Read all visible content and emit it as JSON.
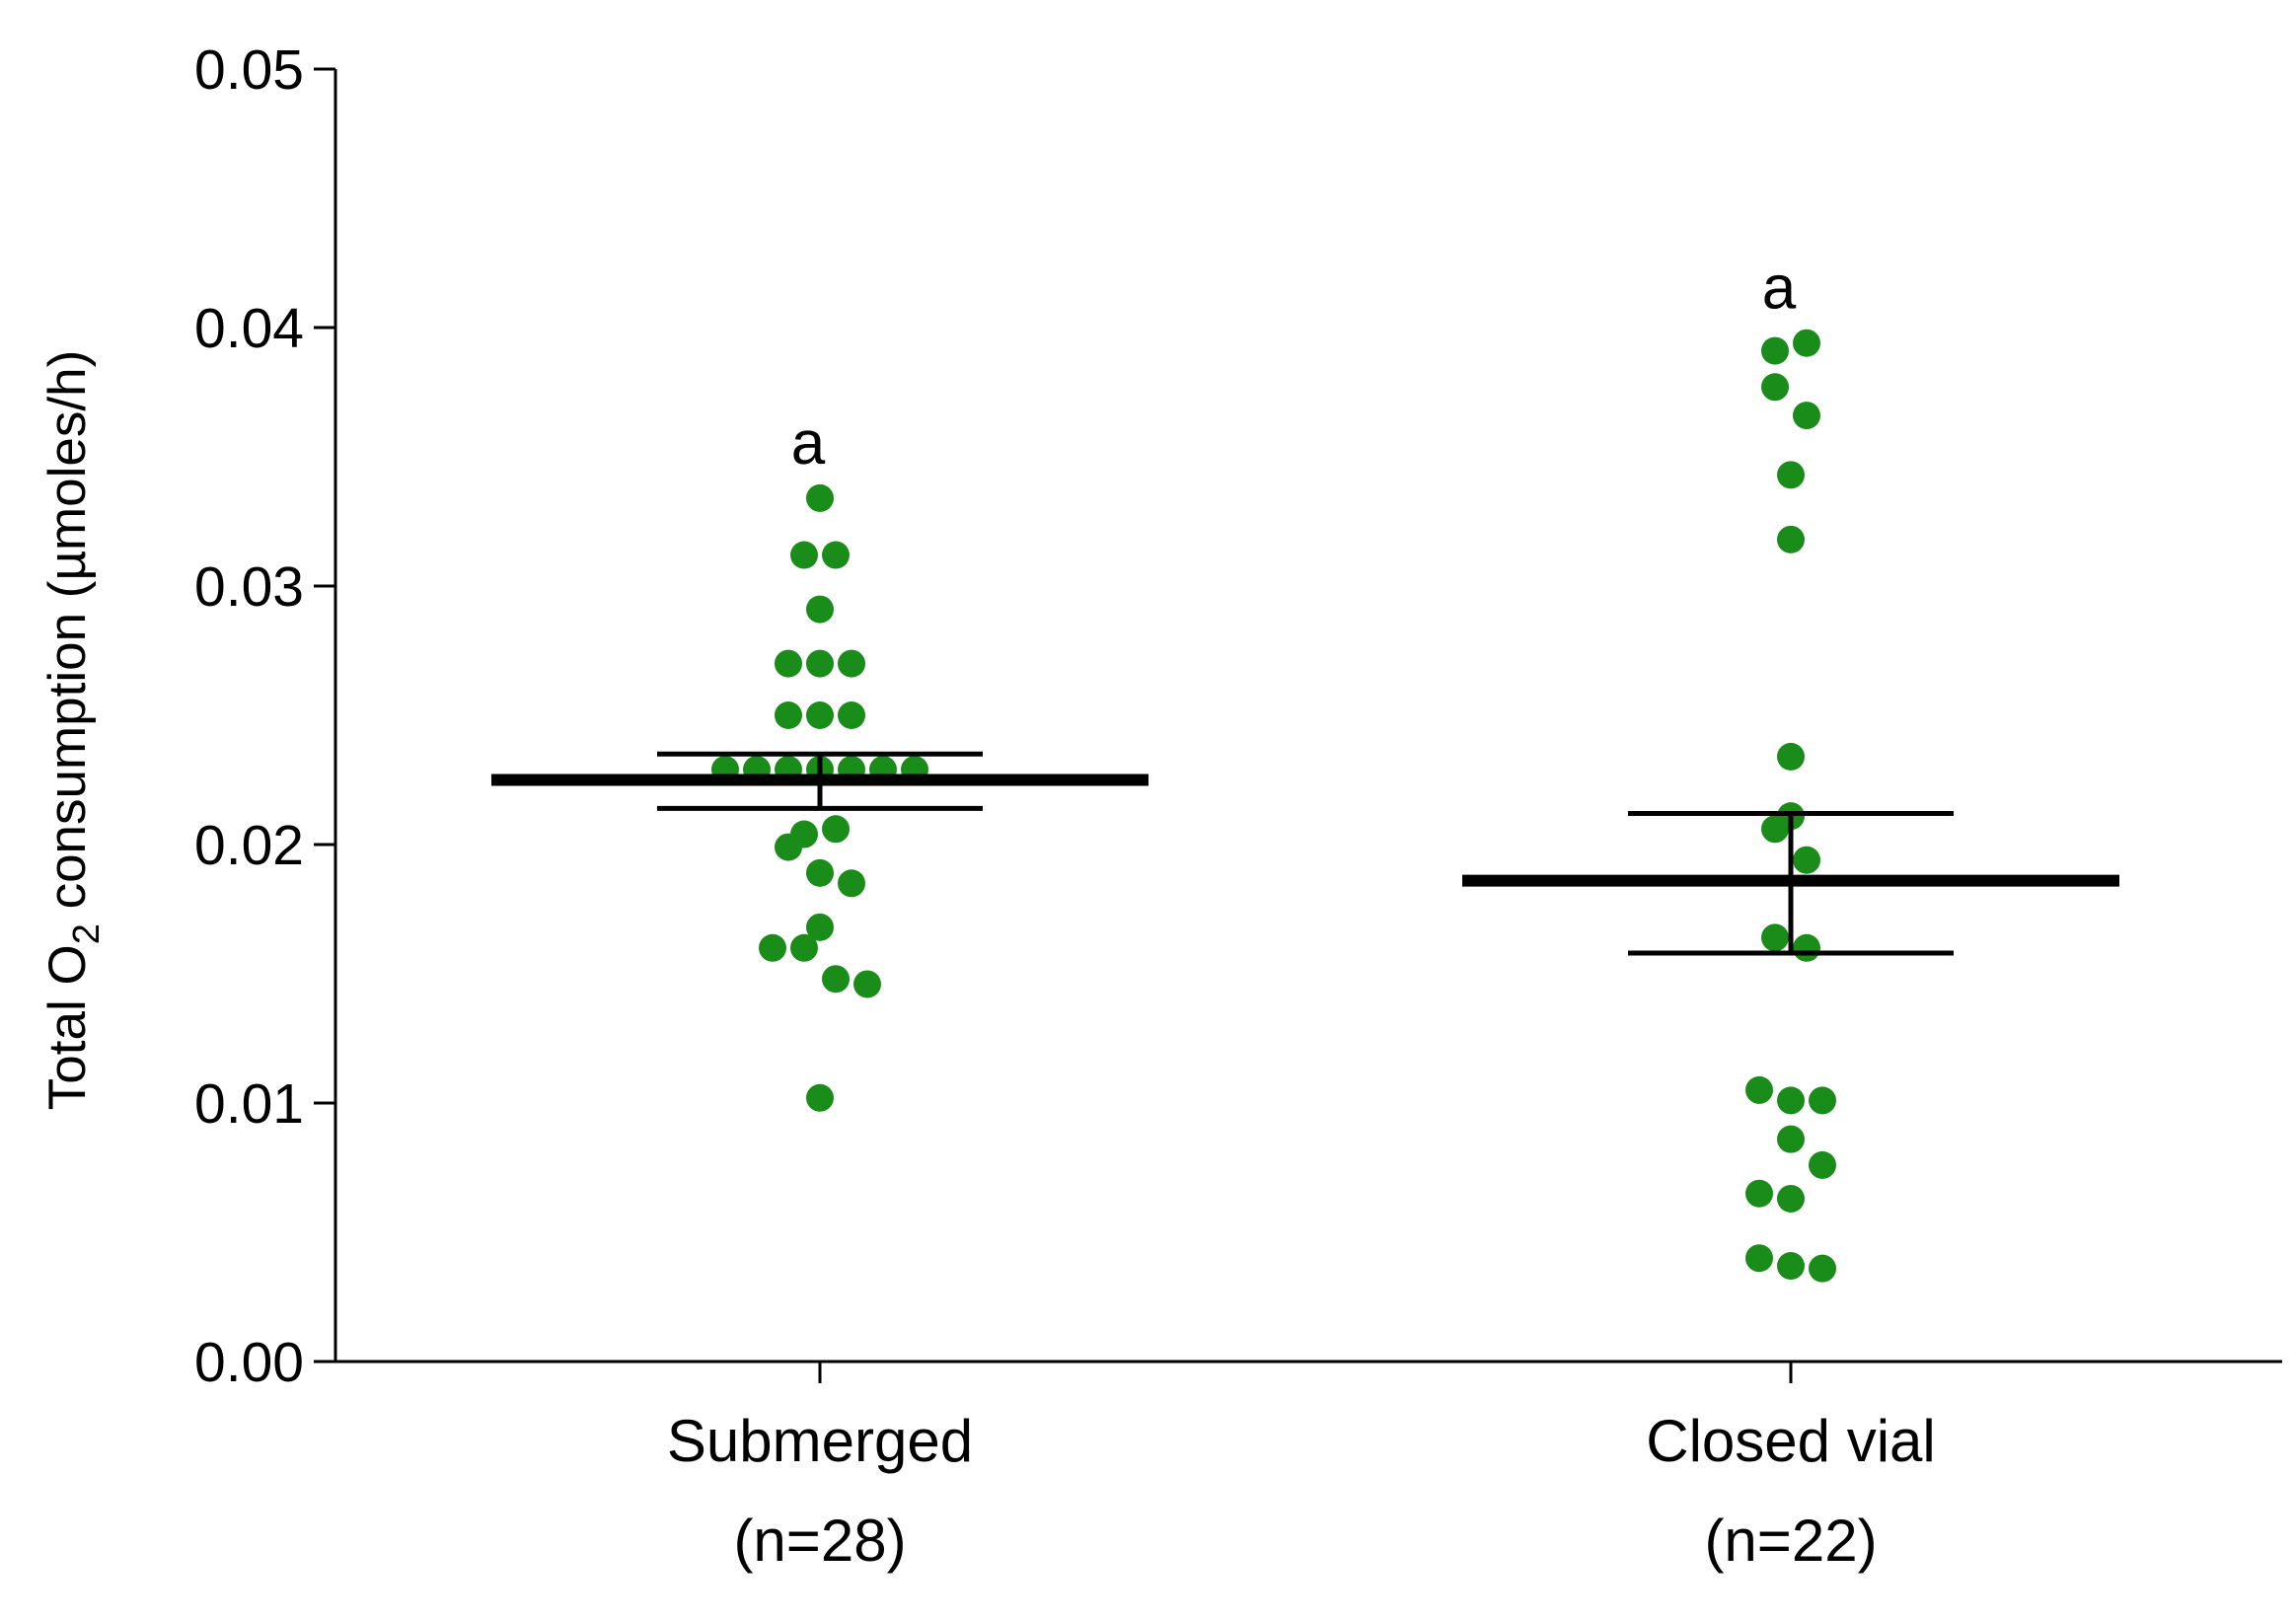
{
  "chart_data": {
    "type": "scatter",
    "title": "",
    "xlabel": "",
    "ylabel": {
      "prefix": "Total O",
      "subscript": "2",
      "suffix": " consumption  (µmoles/h)"
    },
    "ylim": [
      0,
      0.05
    ],
    "yticks": [
      "0.00",
      "0.01",
      "0.02",
      "0.03",
      "0.04",
      "0.05"
    ],
    "point_color": "#1a8c1a",
    "groups": [
      {
        "name": "Submerged",
        "n_label": "(n=28)",
        "annotation": "a",
        "mean": 0.0225,
        "sem_upper": 0.0235,
        "sem_lower": 0.0214,
        "points": [
          {
            "y": 0.0334,
            "offset": 0
          },
          {
            "y": 0.0312,
            "offset": -0.5
          },
          {
            "y": 0.0312,
            "offset": 0.5
          },
          {
            "y": 0.0291,
            "offset": 0
          },
          {
            "y": 0.027,
            "offset": -1
          },
          {
            "y": 0.027,
            "offset": 0
          },
          {
            "y": 0.027,
            "offset": 1
          },
          {
            "y": 0.025,
            "offset": -1
          },
          {
            "y": 0.025,
            "offset": 0
          },
          {
            "y": 0.025,
            "offset": 1
          },
          {
            "y": 0.0229,
            "offset": -3
          },
          {
            "y": 0.0229,
            "offset": -2
          },
          {
            "y": 0.0229,
            "offset": -1
          },
          {
            "y": 0.0229,
            "offset": 0
          },
          {
            "y": 0.0229,
            "offset": 1
          },
          {
            "y": 0.0229,
            "offset": 2
          },
          {
            "y": 0.0229,
            "offset": 3
          },
          {
            "y": 0.0204,
            "offset": -0.5
          },
          {
            "y": 0.0206,
            "offset": 0.5
          },
          {
            "y": 0.0199,
            "offset": -1
          },
          {
            "y": 0.0189,
            "offset": 0
          },
          {
            "y": 0.0185,
            "offset": 1
          },
          {
            "y": 0.0168,
            "offset": 0
          },
          {
            "y": 0.016,
            "offset": -1.5
          },
          {
            "y": 0.016,
            "offset": -0.5
          },
          {
            "y": 0.0148,
            "offset": 0.5
          },
          {
            "y": 0.0146,
            "offset": 1.5
          },
          {
            "y": 0.0102,
            "offset": 0
          }
        ]
      },
      {
        "name": "Closed vial",
        "n_label": "(n=22)",
        "annotation": "a",
        "mean": 0.0186,
        "sem_upper": 0.0212,
        "sem_lower": 0.0158,
        "points": [
          {
            "y": 0.0394,
            "offset": 0.5
          },
          {
            "y": 0.0391,
            "offset": -0.5
          },
          {
            "y": 0.0377,
            "offset": -0.5
          },
          {
            "y": 0.0366,
            "offset": 0.5
          },
          {
            "y": 0.0343,
            "offset": 0
          },
          {
            "y": 0.0318,
            "offset": 0
          },
          {
            "y": 0.0234,
            "offset": 0
          },
          {
            "y": 0.0211,
            "offset": 0
          },
          {
            "y": 0.0206,
            "offset": -0.5
          },
          {
            "y": 0.0194,
            "offset": 0.5
          },
          {
            "y": 0.0164,
            "offset": -0.5
          },
          {
            "y": 0.016,
            "offset": 0.5
          },
          {
            "y": 0.0105,
            "offset": -1
          },
          {
            "y": 0.0101,
            "offset": 0
          },
          {
            "y": 0.0101,
            "offset": 1
          },
          {
            "y": 0.0086,
            "offset": 0
          },
          {
            "y": 0.0076,
            "offset": 1
          },
          {
            "y": 0.0065,
            "offset": -1
          },
          {
            "y": 0.0063,
            "offset": 0
          },
          {
            "y": 0.004,
            "offset": -1
          },
          {
            "y": 0.0037,
            "offset": 0
          },
          {
            "y": 0.0036,
            "offset": 1
          }
        ]
      }
    ]
  }
}
